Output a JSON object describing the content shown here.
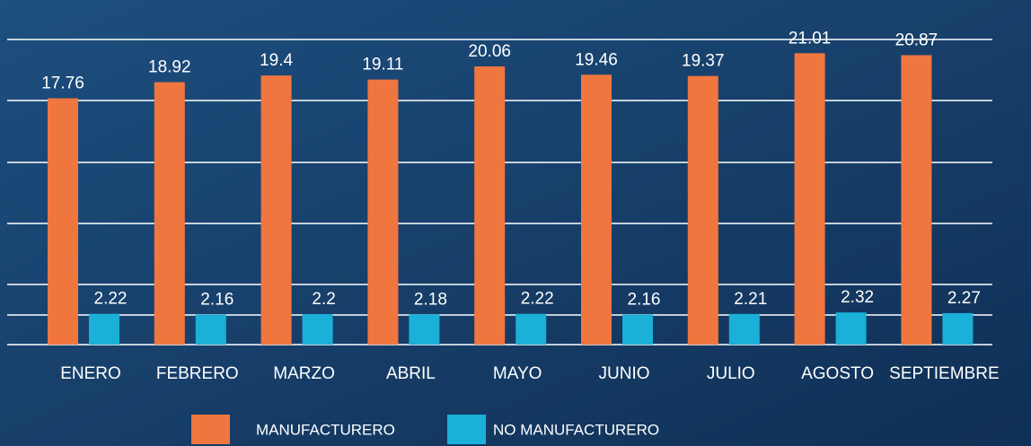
{
  "chart_data": {
    "type": "bar",
    "categories": [
      "ENERO",
      "FEBRERO",
      "MARZO",
      "ABRIL",
      "MAYO",
      "JUNIO",
      "JULIO",
      "AGOSTO",
      "SEPTIEMBRE"
    ],
    "series": [
      {
        "name": "MANUFACTURERO",
        "color": "#f0763f",
        "values": [
          17.76,
          18.92,
          19.4,
          19.11,
          20.06,
          19.46,
          19.37,
          21.01,
          20.87
        ]
      },
      {
        "name": "NO MANUFACTURERO",
        "color": "#1ab0d8",
        "values": [
          2.22,
          2.16,
          2.2,
          2.18,
          2.22,
          2.16,
          2.21,
          2.32,
          2.27
        ]
      }
    ],
    "ylim": [
      0,
      22
    ]
  }
}
